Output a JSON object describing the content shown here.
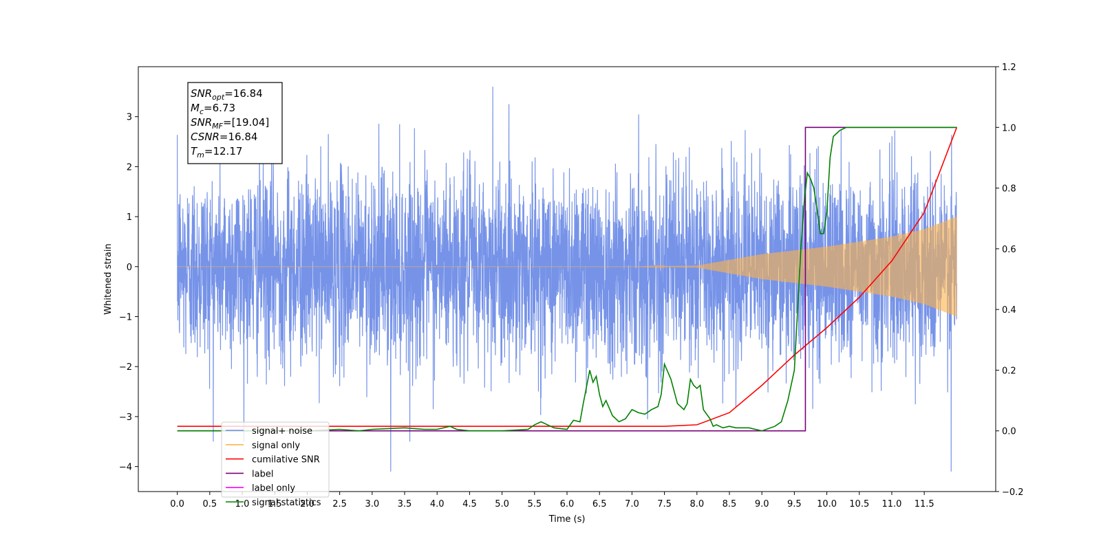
{
  "chart_data": {
    "type": "line",
    "xlabel": "Time (s)",
    "ylabel_left": "Whitened strain",
    "ylabel_right": "",
    "xlim": [
      -0.6,
      12.6
    ],
    "ylim_left": [
      -4.5,
      4.0
    ],
    "ylim_right": [
      -0.2,
      1.2
    ],
    "x_ticks": [
      "0.0",
      "0.5",
      "1.0",
      "1.5",
      "2.0",
      "2.5",
      "3.0",
      "3.5",
      "4.0",
      "4.5",
      "5.0",
      "5.5",
      "6.0",
      "6.5",
      "7.0",
      "7.5",
      "8.0",
      "8.5",
      "9.0",
      "9.5",
      "10.0",
      "10.5",
      "11.0",
      "11.5"
    ],
    "y_ticks_left": [
      -4,
      -3,
      -2,
      -1,
      0,
      1,
      2,
      3
    ],
    "y_ticks_right": [
      -0.2,
      0.0,
      0.2,
      0.4,
      0.6,
      0.8,
      1.0,
      1.2
    ],
    "grid": false,
    "legend_position": "lower-left",
    "series": [
      {
        "name": "signal+ noise",
        "color": "#6a8ae6",
        "axis": "left",
        "kind": "noise",
        "x_range": [
          0.0,
          12.0
        ],
        "std": 1.0,
        "peak_max": 3.6,
        "peak_min": -4.1
      },
      {
        "name": "signal only",
        "color": "#ffb347",
        "axis": "left",
        "kind": "chirp",
        "x_range": [
          0.0,
          12.0
        ],
        "envelope_x": [
          0.0,
          7.0,
          8.0,
          9.0,
          10.0,
          11.0,
          11.5,
          12.0
        ],
        "envelope_amp": [
          0.0,
          0.0,
          0.02,
          0.25,
          0.4,
          0.6,
          0.75,
          1.0
        ]
      },
      {
        "name": "cumilative SNR",
        "color": "#ff0000",
        "axis": "right",
        "x": [
          0.0,
          7.5,
          8.0,
          8.5,
          9.0,
          9.5,
          10.0,
          10.5,
          11.0,
          11.5,
          12.0
        ],
        "y": [
          0.015,
          0.015,
          0.02,
          0.06,
          0.15,
          0.25,
          0.34,
          0.44,
          0.56,
          0.72,
          1.0
        ]
      },
      {
        "name": "label",
        "color": "#7b007b",
        "axis": "right",
        "x": [
          0.0,
          9.67,
          9.67,
          12.0
        ],
        "y": [
          0.0,
          0.0,
          1.0,
          1.0
        ]
      },
      {
        "name": "label only",
        "color": "#ff00ff",
        "axis": "right",
        "hidden_in_plot": true,
        "x": [],
        "y": []
      },
      {
        "name": "signal statistics",
        "color": "#008000",
        "axis": "right",
        "x": [
          0.0,
          1.0,
          2.0,
          2.5,
          2.8,
          3.0,
          3.5,
          3.8,
          4.0,
          4.2,
          4.3,
          4.5,
          5.0,
          5.4,
          5.5,
          5.6,
          5.8,
          6.0,
          6.1,
          6.2,
          6.25,
          6.35,
          6.4,
          6.45,
          6.5,
          6.55,
          6.6,
          6.7,
          6.8,
          6.9,
          7.0,
          7.1,
          7.2,
          7.3,
          7.4,
          7.45,
          7.5,
          7.6,
          7.7,
          7.8,
          7.85,
          7.9,
          7.95,
          8.0,
          8.05,
          8.1,
          8.2,
          8.25,
          8.3,
          8.4,
          8.5,
          8.6,
          8.8,
          9.0,
          9.2,
          9.3,
          9.4,
          9.5,
          9.55,
          9.6,
          9.65,
          9.7,
          9.75,
          9.8,
          9.85,
          9.9,
          9.95,
          10.0,
          10.05,
          10.1,
          10.15,
          10.2,
          10.3,
          10.4,
          10.5,
          11.0,
          12.0
        ],
        "y": [
          0.0,
          0.0,
          0.0,
          0.005,
          0.0,
          0.005,
          0.01,
          0.005,
          0.005,
          0.015,
          0.005,
          0.0,
          0.0,
          0.005,
          0.02,
          0.03,
          0.01,
          0.005,
          0.035,
          0.03,
          0.09,
          0.2,
          0.16,
          0.18,
          0.12,
          0.08,
          0.1,
          0.05,
          0.03,
          0.04,
          0.07,
          0.06,
          0.055,
          0.07,
          0.08,
          0.12,
          0.22,
          0.17,
          0.09,
          0.07,
          0.09,
          0.17,
          0.15,
          0.14,
          0.15,
          0.07,
          0.04,
          0.015,
          0.02,
          0.01,
          0.015,
          0.01,
          0.01,
          0.0,
          0.015,
          0.03,
          0.1,
          0.2,
          0.4,
          0.6,
          0.75,
          0.85,
          0.83,
          0.8,
          0.73,
          0.65,
          0.65,
          0.72,
          0.9,
          0.97,
          0.98,
          0.99,
          1.0,
          1.0,
          1.0,
          1.0,
          1.0
        ]
      }
    ],
    "annotation": {
      "lines": [
        {
          "base": "SNR",
          "sub": "opt",
          "value": "=16.84"
        },
        {
          "base": "M",
          "sub": "c",
          "value": "=6.73"
        },
        {
          "base": "SNR",
          "sub": "MF",
          "value": "=[19.04]"
        },
        {
          "base": "CSNR",
          "sub": "",
          "value": "=16.84"
        },
        {
          "base": "T",
          "sub": "m",
          "value": "=12.17"
        }
      ]
    }
  }
}
